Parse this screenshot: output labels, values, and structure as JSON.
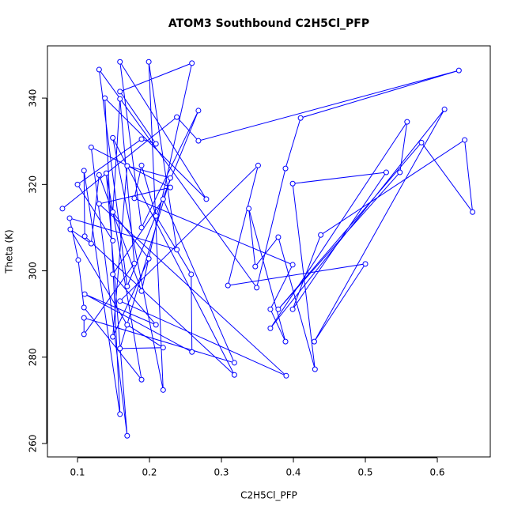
{
  "chart_data": {
    "type": "line",
    "title": "ATOM3 Southbound C2H5Cl_PFP",
    "x_label": "C2H5Cl_PFP",
    "y_label": "Theta (K)",
    "color": "#0000ff",
    "markers": true,
    "x": [
      0.079,
      0.238,
      0.268,
      0.63,
      0.41,
      0.389,
      0.349,
      0.13,
      0.169,
      0.268,
      0.189,
      0.159,
      0.279,
      0.138,
      0.159,
      0.109,
      0.11,
      0.318,
      0.149,
      0.219,
      0.199,
      0.238,
      0.089,
      0.101,
      0.109,
      0.189,
      0.14,
      0.169,
      0.119,
      0.229,
      0.13,
      0.39,
      0.159,
      0.351,
      0.309,
      0.5,
      0.429,
      0.61,
      0.368,
      0.558,
      0.548,
      0.379,
      0.578,
      0.649,
      0.638,
      0.438,
      0.399,
      0.529,
      0.399,
      0.43,
      0.379,
      0.347,
      0.338,
      0.389,
      0.368,
      0.399,
      0.179,
      0.189,
      0.209,
      0.258,
      0.259,
      0.11,
      0.209,
      0.149,
      0.219,
      0.318,
      0.109,
      0.109,
      0.179,
      0.159,
      0.149,
      0.199,
      0.149,
      0.169,
      0.229,
      0.159,
      0.219,
      0.169,
      0.09,
      0.119,
      0.13,
      0.189,
      0.259,
      0.159,
      0.209,
      0.189,
      0.1,
      0.149
    ],
    "values": [
      314.4,
      335.6,
      330.1,
      346.4,
      335.4,
      323.7,
      296.1,
      346.6,
      296.4,
      337.1,
      310.0,
      348.4,
      316.6,
      340.0,
      266.8,
      323.2,
      308.0,
      275.9,
      330.8,
      272.4,
      348.4,
      304.9,
      312.2,
      302.5,
      291.5,
      274.8,
      322.6,
      261.8,
      328.6,
      319.3,
      315.5,
      275.7,
      293.0,
      324.4,
      296.6,
      301.6,
      283.6,
      337.4,
      286.7,
      334.5,
      322.8,
      291.1,
      329.7,
      313.6,
      330.3,
      308.3,
      291.1,
      322.8,
      320.2,
      277.2,
      307.8,
      301.0,
      314.4,
      283.6,
      291.1,
      301.4,
      316.8,
      324.4,
      312.7,
      299.2,
      281.2,
      294.6,
      287.5,
      299.2,
      316.6,
      278.7,
      289.1,
      285.3,
      301.7,
      339.8,
      313.6,
      302.8,
      284.7,
      324.3,
      321.5,
      282.0,
      282.2,
      287.5,
      309.6,
      306.3,
      322.2,
      295.3,
      348.1,
      341.5,
      329.4,
      330.5,
      320.0,
      307.0
    ],
    "xlim": [
      0.0582,
      0.6736
    ],
    "ylim": [
      256.9,
      352.1
    ],
    "xticks": [
      0.1,
      0.2,
      0.3,
      0.4,
      0.5,
      0.6
    ],
    "yticks": [
      260,
      280,
      300,
      320,
      340
    ]
  }
}
